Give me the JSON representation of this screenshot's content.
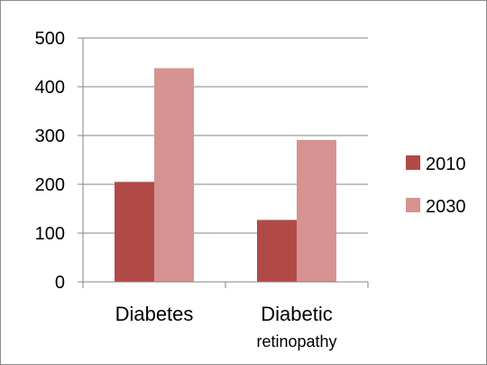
{
  "chart_data": {
    "type": "bar",
    "categories": [
      [
        "Diabetes"
      ],
      [
        "Diabetic",
        "retinopathy"
      ]
    ],
    "series": [
      {
        "name": "2010",
        "values": [
          205,
          127
        ],
        "color": "#b14a47"
      },
      {
        "name": "2030",
        "values": [
          438,
          291
        ],
        "color": "#d69391"
      }
    ],
    "ylim": [
      0,
      500
    ],
    "yticks": [
      0,
      100,
      200,
      300,
      400,
      500
    ],
    "grid": true,
    "legend": "right"
  }
}
